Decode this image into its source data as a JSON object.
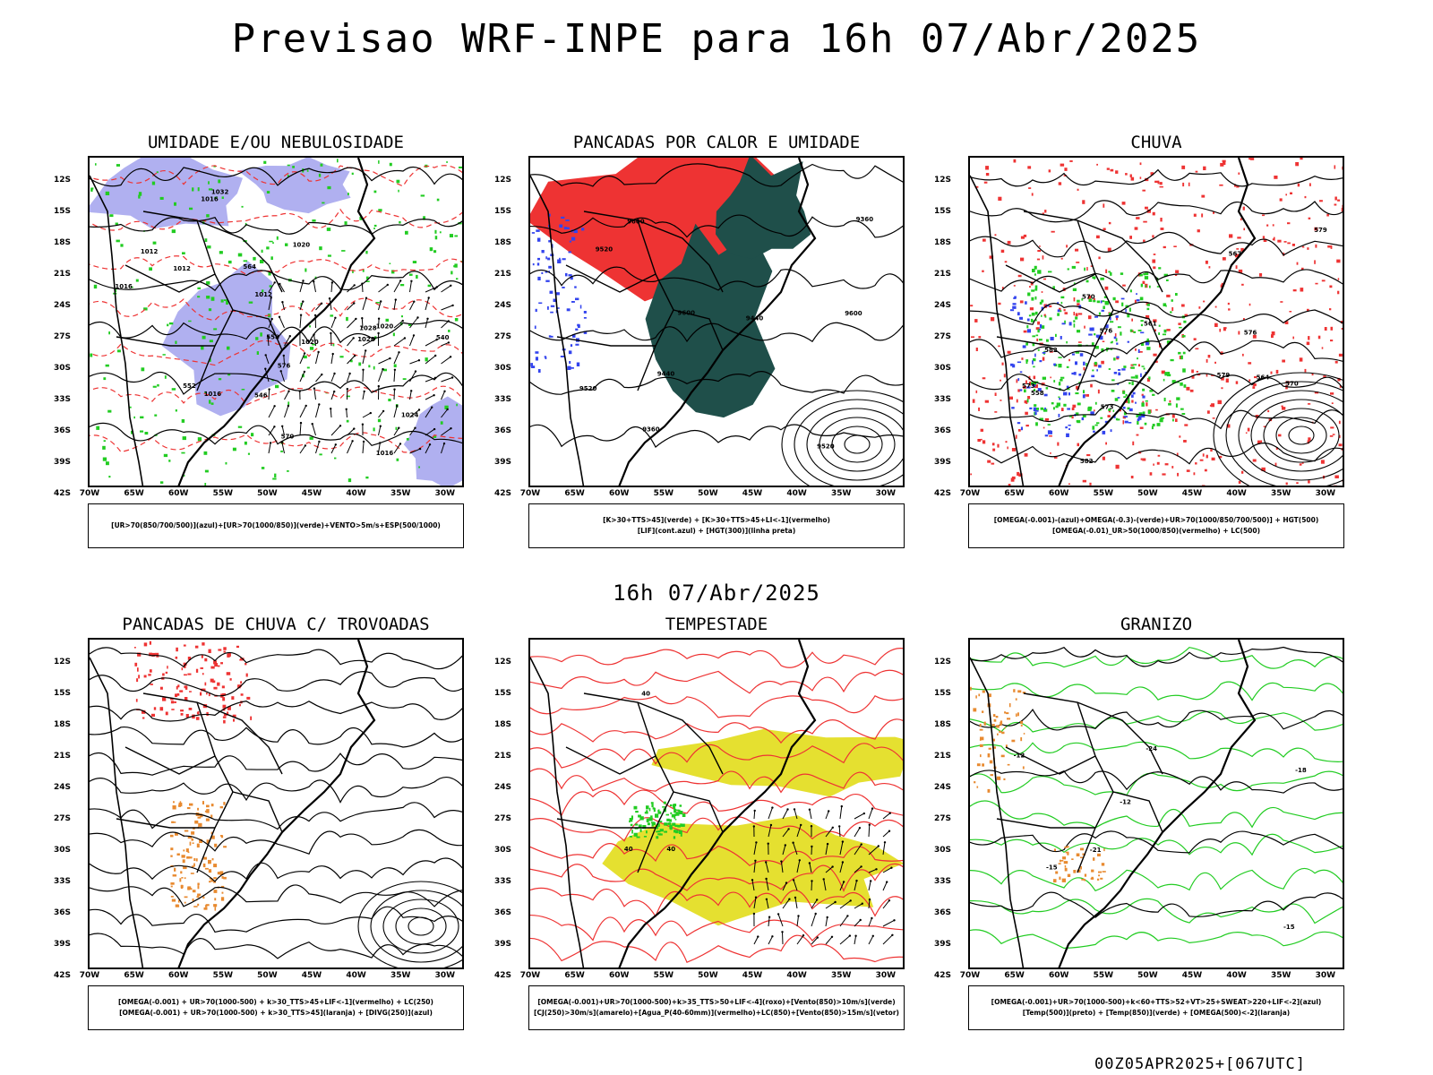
{
  "title": "Previsao WRF-INPE  para 16h 07/Abr/2025",
  "subtitle": "16h 07/Abr/2025",
  "footer": "00Z05APR2025+[067UTC]",
  "axes": {
    "lat_labels": [
      "12S",
      "15S",
      "18S",
      "21S",
      "24S",
      "27S",
      "30S",
      "33S",
      "36S",
      "39S",
      "42S"
    ],
    "lon_labels": [
      "70W",
      "65W",
      "60W",
      "55W",
      "50W",
      "45W",
      "40W",
      "35W",
      "30W"
    ]
  },
  "colors": {
    "red": "#ee3333",
    "green": "#22cc22",
    "blue": "#3344ee",
    "lavender": "#b0b0f0",
    "darkteal": "#1f4f4a",
    "yellow": "#e5e030",
    "orange": "#e88a30",
    "purple": "#9933cc"
  },
  "panels": [
    {
      "id": "umidade",
      "title": "UMIDADE E/OU NEBULOSIDADE",
      "legend": [
        "[UR>70(850/700/500)](azul)+[UR>70(1000/850)](verde)+VENTO>5m/s+ESP(500/1000)"
      ],
      "labels": [
        "1012",
        "1012",
        "1012",
        "1016",
        "1016",
        "1020",
        "1016",
        "1020",
        "1024",
        "1028",
        "1032",
        "1028",
        "1016",
        "1020",
        "576",
        "570",
        "564",
        "558",
        "552",
        "546",
        "540"
      ]
    },
    {
      "id": "pancadas",
      "title": "PANCADAS POR CALOR E UMIDADE",
      "legend": [
        "[K>30+TTS>45](verde) + [K>30+TTS>45+LI<-1](vermelho)",
        "[LIF](cont.azul) + [HGT(300)](linha preta)"
      ],
      "labels": [
        "9600",
        "9600",
        "9600",
        "9520",
        "9520",
        "9520",
        "9440",
        "9360",
        "9440",
        "9360"
      ]
    },
    {
      "id": "chuva",
      "title": "CHUVA",
      "legend": [
        "[OMEGA(-0.001)-(azul)+OMEGA(-0.3)-(verde)+UR>70(1000/850/700/500)] + HGT(500)",
        "[OMEGA(-0.01)_UR>50(1000/850)(vermelho) + LC(500)"
      ],
      "labels": [
        "582",
        "579",
        "576",
        "573",
        "570",
        "567",
        "582",
        "579",
        "576",
        "573",
        "570",
        "564",
        "561",
        "558"
      ]
    },
    {
      "id": "trovoadas",
      "title": "PANCADAS DE CHUVA C/ TROVOADAS",
      "legend": [
        "[OMEGA(-0.001) + UR>70(1000-500) + k>30_TTS>45+LIF<-1](vermelho) + LC(250)",
        "[OMEGA(-0.001) + UR>70(1000-500) + k>30_TTS>45](laranja) + [DIVG(250)](azul)"
      ],
      "labels": []
    },
    {
      "id": "tempestade",
      "title": "TEMPESTADE",
      "legend": [
        "[OMEGA(-0.001)+UR>70(1000-500)+k>35_TTS>50+LIF<-4](roxo)+[Vento(850)>10m/s](verde)",
        "[CJ(250)>30m/s](amarelo)+[Agua_P(40-60mm)](vermelho)+LC(850)+[Vento(850)>15m/s](vetor)"
      ],
      "labels": [
        "40",
        "40",
        "40"
      ]
    },
    {
      "id": "granizo",
      "title": "GRANIZO",
      "legend": [
        "[OMEGA(-0.001)+UR>70(1000-500)+k<60+TTS>52+VT>25+SWEAT>220+LIF<-2](azul)",
        "[Temp(500)](preto) + [Temp(850)](verde) + [OMEGA(500)<-2](laranja)"
      ],
      "labels": [
        "-12",
        "-12",
        "-15",
        "-18",
        "-21",
        "-24",
        "-15"
      ]
    }
  ]
}
